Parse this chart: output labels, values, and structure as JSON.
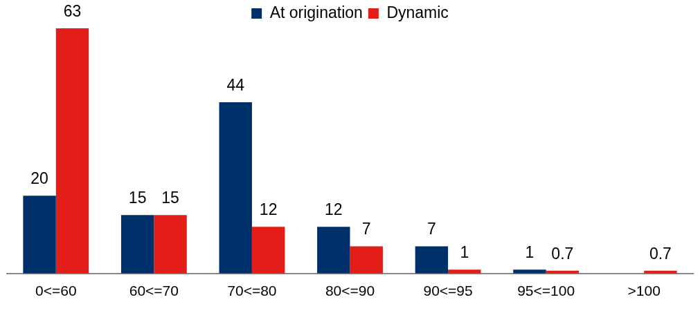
{
  "chart_data": {
    "type": "bar",
    "categories": [
      "0<=60",
      "60<=70",
      "70<=80",
      "80<=90",
      "90<=95",
      "95<=100",
      ">100"
    ],
    "series": [
      {
        "name": "At origination",
        "color": "#003069",
        "values": [
          20,
          15,
          44,
          12,
          7,
          1,
          null
        ]
      },
      {
        "name": "Dynamic",
        "color": "#e31e19",
        "values": [
          63,
          15,
          12,
          7,
          1,
          0.7,
          0.7
        ]
      }
    ],
    "data_labels": true,
    "legend": "top",
    "grid": false
  }
}
